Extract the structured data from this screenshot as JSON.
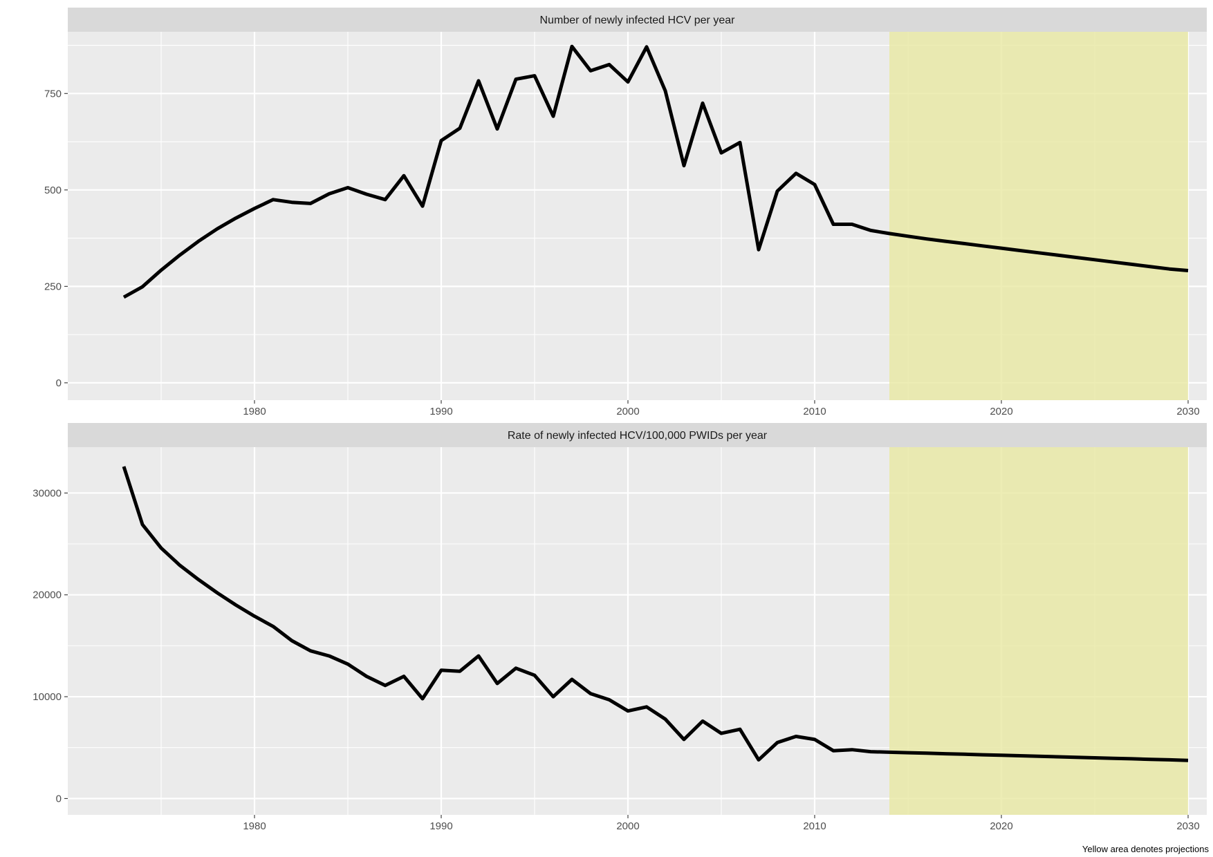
{
  "caption": "Yellow area denotes projections",
  "style": {
    "panel_bg": "#ebebeb",
    "strip_bg": "#d9d9d9",
    "grid": "#ffffff",
    "line": "#000000",
    "projection_fill": "#e8e8a0"
  },
  "chart_data": [
    {
      "type": "line",
      "title": "Number of newly infected HCV per year",
      "xlabel": "",
      "ylabel": "",
      "xlim": [
        1970,
        2031
      ],
      "ylim": [
        -45,
        910
      ],
      "x_ticks": [
        1980,
        1990,
        2000,
        2010,
        2020,
        2030
      ],
      "y_ticks": [
        0,
        250,
        500,
        750
      ],
      "grid": true,
      "projection_region": [
        2014,
        2030
      ],
      "series": [
        {
          "x": [
            1973,
            1974,
            1975,
            1976,
            1977,
            1978,
            1979,
            1980,
            1981,
            1982,
            1983,
            1984,
            1985,
            1986,
            1987,
            1988,
            1989,
            1990,
            1991,
            1992,
            1993,
            1994,
            1995,
            1996,
            1997,
            1998,
            1999,
            2000,
            2001,
            2002,
            2003,
            2004,
            2005,
            2006,
            2007,
            2008,
            2009,
            2010,
            2011,
            2012,
            2013,
            2014,
            2015,
            2016,
            2017,
            2018,
            2019,
            2020,
            2021,
            2022,
            2023,
            2024,
            2025,
            2026,
            2027,
            2028,
            2029,
            2030
          ],
          "y": [
            222,
            249,
            292,
            331,
            367,
            399,
            427,
            452,
            475,
            468,
            465,
            490,
            506,
            489,
            475,
            537,
            458,
            628,
            660,
            783,
            658,
            787,
            796,
            691,
            872,
            809,
            825,
            780,
            871,
            757,
            563,
            725,
            596,
            623,
            345,
            497,
            543,
            514,
            411,
            411,
            395,
            387,
            380,
            373,
            367,
            361,
            355,
            349,
            343,
            337,
            331,
            325,
            319,
            313,
            307,
            301,
            295,
            291
          ]
        }
      ]
    },
    {
      "type": "line",
      "title": "Rate of newly infected HCV/100,000 PWIDs per year",
      "xlabel": "",
      "ylabel": "",
      "xlim": [
        1970,
        2031
      ],
      "ylim": [
        -1600,
        34500
      ],
      "x_ticks": [
        1980,
        1990,
        2000,
        2010,
        2020,
        2030
      ],
      "y_ticks": [
        0,
        10000,
        20000,
        30000
      ],
      "grid": true,
      "projection_region": [
        2014,
        2030
      ],
      "series": [
        {
          "x": [
            1973,
            1974,
            1975,
            1976,
            1977,
            1978,
            1979,
            1980,
            1981,
            1982,
            1983,
            1984,
            1985,
            1986,
            1987,
            1988,
            1989,
            1990,
            1991,
            1992,
            1993,
            1994,
            1995,
            1996,
            1997,
            1998,
            1999,
            2000,
            2001,
            2002,
            2003,
            2004,
            2005,
            2006,
            2007,
            2008,
            2009,
            2010,
            2011,
            2012,
            2013,
            2014,
            2015,
            2016,
            2017,
            2018,
            2019,
            2020,
            2021,
            2022,
            2023,
            2024,
            2025,
            2026,
            2027,
            2028,
            2029,
            2030
          ],
          "y": [
            32600,
            26900,
            24600,
            22900,
            21500,
            20200,
            19000,
            17900,
            16900,
            15500,
            14500,
            14000,
            13200,
            12000,
            11100,
            12000,
            9800,
            12600,
            12500,
            14000,
            11300,
            12800,
            12100,
            10000,
            11700,
            10300,
            9700,
            8600,
            9000,
            7800,
            5800,
            7600,
            6400,
            6800,
            3800,
            5500,
            6100,
            5800,
            4700,
            4800,
            4600,
            4550,
            4500,
            4450,
            4400,
            4350,
            4300,
            4250,
            4200,
            4150,
            4100,
            4050,
            4000,
            3950,
            3900,
            3850,
            3800,
            3750
          ]
        }
      ]
    }
  ]
}
